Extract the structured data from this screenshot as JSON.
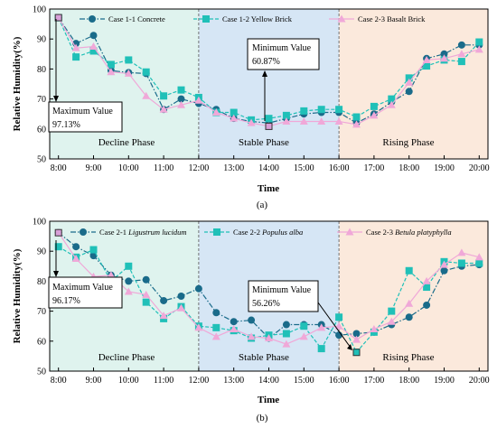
{
  "charts": [
    {
      "sub_label": "(a)",
      "ylabel": "Relative Humidity(%)",
      "xlabel": "Time",
      "x_ticks": [
        "8:00",
        "9:00",
        "10:00",
        "11:00",
        "12:00",
        "13:00",
        "14:00",
        "15:00",
        "16:00",
        "17:00",
        "18:00",
        "19:00",
        "20:00"
      ],
      "y_ticks": [
        "50",
        "60",
        "70",
        "80",
        "90",
        "100"
      ],
      "phases": [
        "Decline Phase",
        "Stable Phase",
        "Rising Phase"
      ],
      "phase_colors": [
        "#dff3ee",
        "#d6e6f5",
        "#fbe9dc"
      ],
      "annotations": {
        "max_label": "Maximum Value",
        "max_value": "97.13%",
        "min_label": "Minimum Value",
        "min_value": "60.87%"
      },
      "legend": [
        {
          "pre": "Case 1-1 Concrete",
          "italic": "",
          "post": ""
        },
        {
          "pre": "Case 1-2 Yellow Brick",
          "italic": "",
          "post": ""
        },
        {
          "pre": "Case 2-3 Basalt Brick",
          "italic": "",
          "post": ""
        }
      ]
    },
    {
      "sub_label": "(b)",
      "ylabel": "Relative Humidity(%)",
      "xlabel": "Time",
      "x_ticks": [
        "8:00",
        "9:00",
        "10:00",
        "11:00",
        "12:00",
        "13:00",
        "14:00",
        "15:00",
        "16:00",
        "17:00",
        "18:00",
        "19:00",
        "20:00"
      ],
      "y_ticks": [
        "50",
        "60",
        "70",
        "80",
        "90",
        "100"
      ],
      "phases": [
        "Decline Phase",
        "Stable Phase",
        "Rising Phase"
      ],
      "phase_colors": [
        "#dff3ee",
        "#d6e6f5",
        "#fbe9dc"
      ],
      "annotations": {
        "max_label": "Maximum Value",
        "max_value": "96.17%",
        "min_label": "Minimum Value",
        "min_value": "56.26%"
      },
      "legend": [
        {
          "pre": "Case 2-1 ",
          "italic": "Ligustrum lucidum",
          "post": ""
        },
        {
          "pre": "Case 2-2 ",
          "italic": "Populus alba",
          "post": ""
        },
        {
          "pre": "Case 2-3 ",
          "italic": "Betula platyphylla",
          "post": ""
        }
      ]
    }
  ],
  "chart_data": [
    {
      "type": "line",
      "ylim": [
        50,
        100
      ],
      "xlim": [
        7.75,
        20.25
      ],
      "phase_bounds": [
        7.75,
        12,
        16,
        20.25
      ],
      "x": [
        8,
        8.5,
        9,
        9.5,
        10,
        10.5,
        11,
        11.5,
        12,
        12.5,
        13,
        13.5,
        14,
        14.5,
        15,
        15.5,
        16,
        16.5,
        17,
        17.5,
        18,
        18.5,
        19,
        19.5,
        20
      ],
      "series": [
        {
          "color": "#1a6b8a",
          "marker": "circle",
          "dash": "6,2,1.5,2",
          "values": [
            97.1,
            88.5,
            91.2,
            79.5,
            78.8,
            78.5,
            66.5,
            70,
            68.5,
            66.5,
            63.5,
            62.5,
            62,
            63.5,
            65,
            65.5,
            65.5,
            62,
            65,
            69,
            72.5,
            83.5,
            85,
            88,
            88
          ]
        },
        {
          "color": "#20c0b8",
          "marker": "square",
          "dash": "4,2",
          "values": [
            97.1,
            84,
            86,
            81.5,
            83,
            79,
            71,
            73,
            70.5,
            65.5,
            65.5,
            63,
            63.5,
            64.5,
            66,
            66.5,
            66.5,
            64,
            67.5,
            70,
            77,
            81,
            83,
            82.5,
            89
          ]
        },
        {
          "color": "#f0a8d8",
          "marker": "triangle",
          "dash": "",
          "values": [
            97.1,
            87,
            87.5,
            79,
            78.5,
            71,
            66.5,
            68,
            69.5,
            65.5,
            63.5,
            62,
            60.9,
            62.5,
            62.5,
            62.5,
            62.5,
            61.5,
            64.5,
            68,
            75.5,
            83,
            83.5,
            85,
            86.5
          ]
        }
      ],
      "highlight_max": {
        "x": 8,
        "y": 97.13
      },
      "highlight_min": {
        "x": 14,
        "y": 60.87
      }
    },
    {
      "type": "line",
      "ylim": [
        50,
        100
      ],
      "xlim": [
        7.75,
        20.25
      ],
      "phase_bounds": [
        7.75,
        12,
        16,
        20.25
      ],
      "x": [
        8,
        8.5,
        9,
        9.5,
        10,
        10.5,
        11,
        11.5,
        12,
        12.5,
        13,
        13.5,
        14,
        14.5,
        15,
        15.5,
        16,
        16.5,
        17,
        17.5,
        18,
        18.5,
        19,
        19.5,
        20
      ],
      "series": [
        {
          "color": "#1a6b8a",
          "marker": "circle",
          "dash": "6,2,1.5,2",
          "values": [
            96.2,
            91.5,
            88.5,
            82,
            80,
            80.5,
            73.5,
            75,
            77.5,
            69.5,
            66.5,
            67,
            61,
            65.5,
            65.5,
            65.5,
            62,
            62.5,
            63,
            65.5,
            68,
            72,
            83.5,
            85,
            85.5
          ]
        },
        {
          "color": "#20c0b8",
          "marker": "square",
          "dash": "4,2",
          "values": [
            91.5,
            88,
            90.5,
            80,
            85,
            73,
            67.5,
            71.5,
            65,
            64.5,
            63.5,
            61,
            62,
            62.5,
            65,
            57.5,
            68,
            56.3,
            63,
            70,
            83.5,
            78,
            86.5,
            86,
            86
          ]
        },
        {
          "color": "#f0a8d8",
          "marker": "triangle",
          "dash": "",
          "values": [
            96.2,
            87.5,
            81.5,
            82,
            76.5,
            75.5,
            68.5,
            71,
            64.5,
            61.5,
            64,
            61.5,
            61,
            59,
            61.5,
            64.5,
            65,
            60.5,
            64,
            66.5,
            72.5,
            80,
            85.5,
            89.5,
            88
          ]
        }
      ],
      "highlight_max": {
        "x": 8,
        "y": 96.17
      },
      "highlight_min": {
        "x": 16.5,
        "y": 56.26
      }
    }
  ]
}
